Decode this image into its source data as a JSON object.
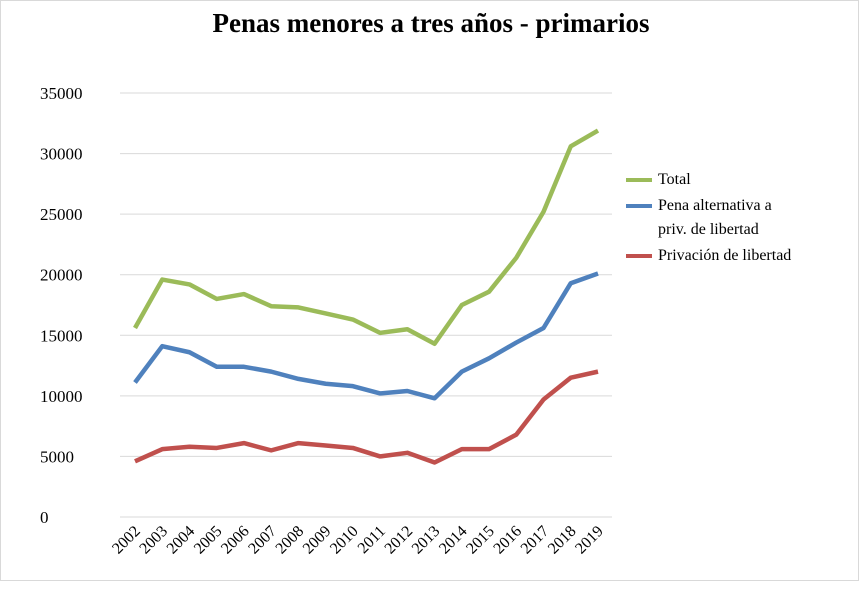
{
  "chart_data": {
    "type": "line",
    "title": "Penas menores a tres años - primarios",
    "categories": [
      "2002",
      "2003",
      "2004",
      "2005",
      "2006",
      "2007",
      "2008",
      "2009",
      "2010",
      "2011",
      "2012",
      "2013",
      "2014",
      "2015",
      "2016",
      "2017",
      "2018",
      "2019"
    ],
    "series": [
      {
        "name": "Total",
        "color": "#9bbb59",
        "values": [
          15600,
          19600,
          19200,
          18000,
          18400,
          17400,
          17300,
          16800,
          16300,
          15200,
          15500,
          14300,
          17500,
          18600,
          21400,
          25200,
          30600,
          31900
        ]
      },
      {
        "name": "Pena alternativa a priv. de libertad",
        "color": "#4f81bd",
        "values": [
          11100,
          14100,
          13600,
          12400,
          12400,
          12000,
          11400,
          11000,
          10800,
          10200,
          10400,
          9800,
          12000,
          13100,
          14400,
          15600,
          19300,
          20100
        ]
      },
      {
        "name": "Privación de libertad",
        "color": "#c0504d",
        "values": [
          4600,
          5600,
          5800,
          5700,
          6100,
          5500,
          6100,
          5900,
          5700,
          5000,
          5300,
          4500,
          5600,
          5600,
          6800,
          9700,
          11500,
          12000
        ]
      }
    ],
    "ylim": [
      0,
      35000
    ],
    "yticks": [
      0,
      5000,
      10000,
      15000,
      20000,
      25000,
      30000,
      35000
    ],
    "grid": true,
    "legend": "right"
  }
}
